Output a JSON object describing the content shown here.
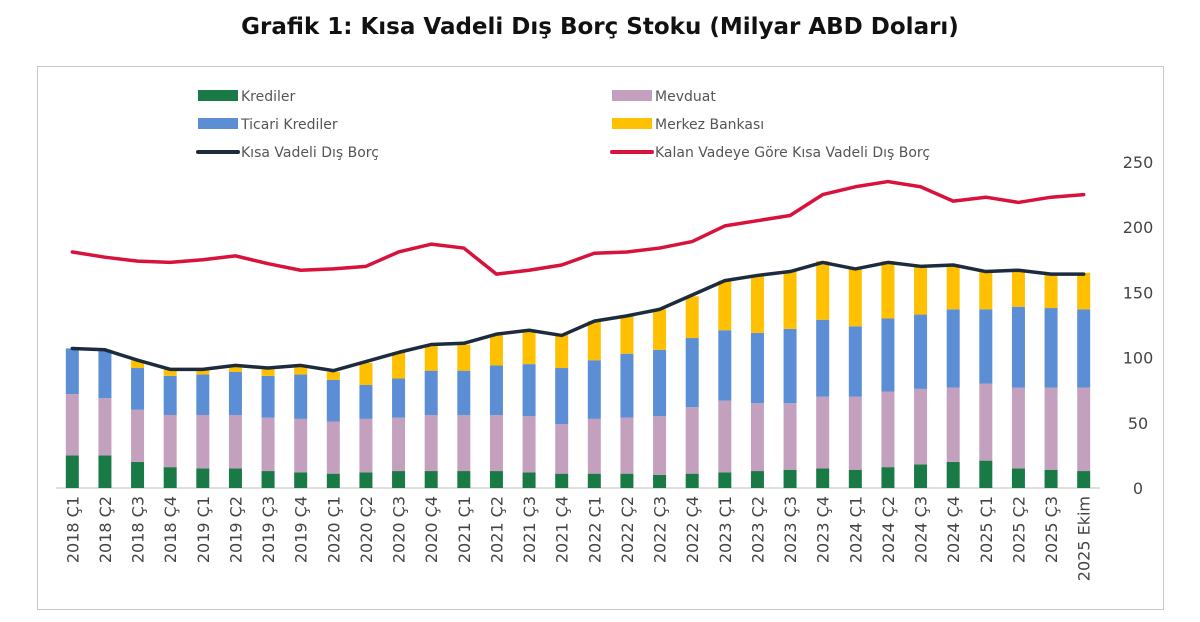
{
  "title": "Grafik 1: Kısa Vadeli Dış Borç Stoku (Milyar ABD Doları)",
  "chart_data": {
    "type": "bar",
    "stacked": true,
    "title": "Grafik 1: Kısa Vadeli Dış Borç Stoku (Milyar ABD Doları)",
    "xlabel": "",
    "ylabel": "",
    "ylim": [
      0,
      250
    ],
    "yticks": [
      0,
      50,
      100,
      150,
      200,
      250
    ],
    "y_axis_side": "right",
    "grid": false,
    "legend_placement": "top",
    "categories": [
      "2018 Ç1",
      "2018 Ç2",
      "2018 Ç3",
      "2018 Ç4",
      "2019 Ç1",
      "2019 Ç2",
      "2019 Ç3",
      "2019 Ç4",
      "2020 Ç1",
      "2020 Ç2",
      "2020 Ç3",
      "2020 Ç4",
      "2021 Ç1",
      "2021 Ç2",
      "2021 Ç3",
      "2021 Ç4",
      "2022 Ç1",
      "2022 Ç2",
      "2022 Ç3",
      "2022 Ç4",
      "2023 Ç1",
      "2023 Ç2",
      "2023 Ç3",
      "2023 Ç4",
      "2024 Ç1",
      "2024 Ç2",
      "2024 Ç3",
      "2024 Ç4",
      "2025 Ç1",
      "2025 Ç2",
      "2025 Ç3",
      "2025 Ekim"
    ],
    "series": [
      {
        "name": "Krediler",
        "kind": "bar",
        "color": "#1a7a45",
        "values": [
          25,
          25,
          20,
          16,
          15,
          15,
          13,
          12,
          11,
          12,
          13,
          13,
          13,
          13,
          12,
          11,
          11,
          11,
          10,
          11,
          12,
          13,
          14,
          15,
          14,
          16,
          18,
          20,
          21,
          15,
          14,
          13
        ]
      },
      {
        "name": "Mevduat",
        "kind": "bar",
        "color": "#c4a0bf",
        "values": [
          47,
          44,
          40,
          40,
          41,
          41,
          41,
          41,
          40,
          41,
          41,
          43,
          43,
          43,
          43,
          38,
          42,
          43,
          45,
          51,
          55,
          52,
          51,
          55,
          56,
          58,
          58,
          57,
          59,
          62,
          63,
          64
        ]
      },
      {
        "name": "Ticari Krediler",
        "kind": "bar",
        "color": "#5b8ed4",
        "values": [
          35,
          36,
          32,
          30,
          31,
          33,
          32,
          34,
          32,
          26,
          30,
          34,
          34,
          38,
          40,
          43,
          45,
          49,
          51,
          53,
          54,
          54,
          57,
          59,
          54,
          56,
          57,
          60,
          57,
          62,
          61,
          60
        ]
      },
      {
        "name": "Merkez Bankası",
        "kind": "bar",
        "color": "#fec000",
        "values": [
          0,
          1,
          6,
          5,
          4,
          5,
          5,
          6,
          6,
          17,
          20,
          20,
          20,
          24,
          26,
          26,
          30,
          29,
          31,
          32,
          38,
          44,
          44,
          45,
          45,
          44,
          37,
          34,
          30,
          29,
          27,
          28
        ]
      },
      {
        "name": "Kısa Vadeli Dış Borç",
        "kind": "line",
        "color": "#1c2b3d",
        "values": [
          107,
          106,
          98,
          91,
          91,
          94,
          92,
          94,
          90,
          97,
          104,
          110,
          111,
          118,
          121,
          117,
          128,
          132,
          137,
          148,
          159,
          163,
          166,
          173,
          168,
          173,
          170,
          171,
          166,
          167,
          164,
          164
        ]
      },
      {
        "name": "Kalan Vadeye Göre Kısa Vadeli Dış Borç",
        "kind": "line",
        "color": "#d8123c",
        "values": [
          181,
          177,
          174,
          173,
          175,
          178,
          172,
          167,
          168,
          170,
          181,
          187,
          184,
          164,
          167,
          171,
          180,
          181,
          184,
          189,
          201,
          205,
          209,
          225,
          231,
          235,
          231,
          220,
          223,
          219,
          223,
          225
        ]
      }
    ]
  }
}
